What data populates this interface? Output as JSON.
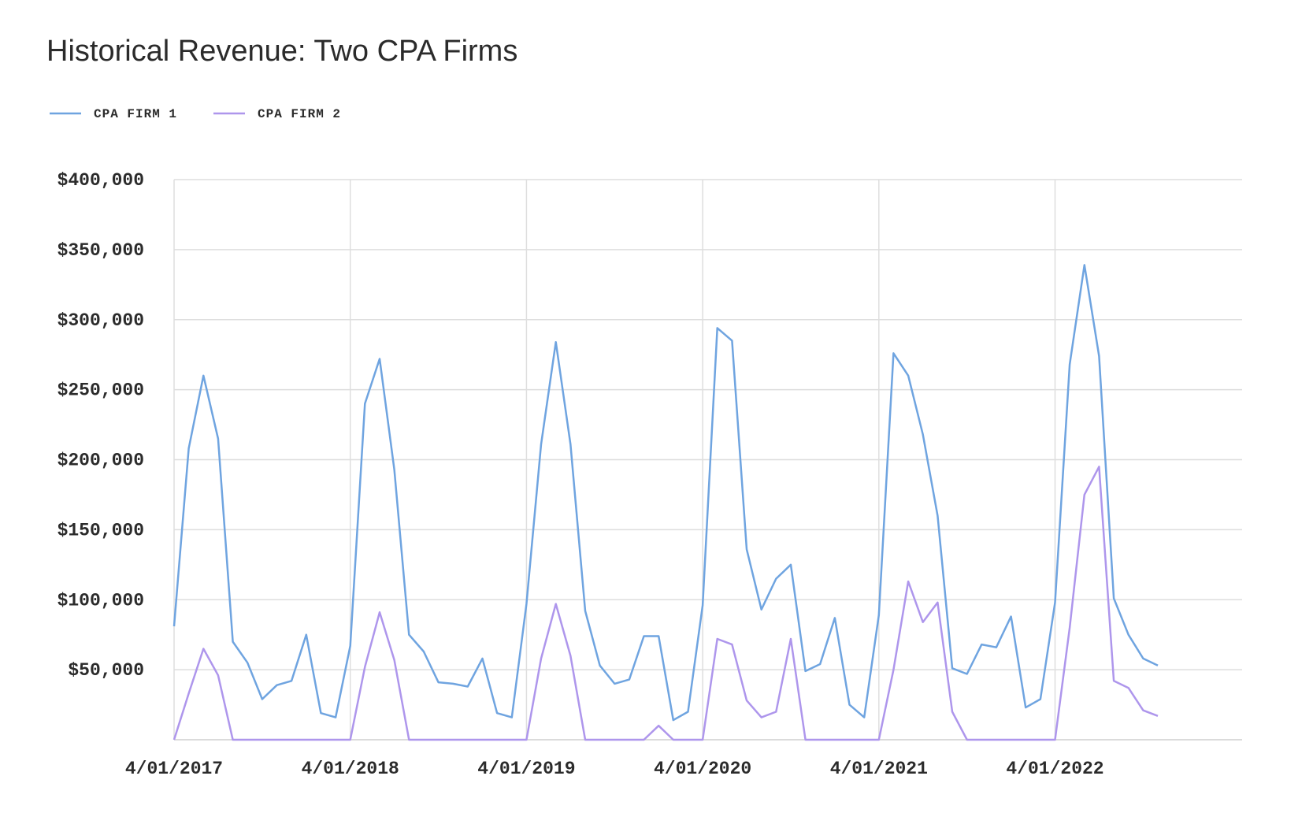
{
  "chart_data": {
    "type": "line",
    "title": "Historical Revenue: Two CPA Firms",
    "categories": [
      "4/01/2017",
      null,
      null,
      null,
      null,
      null,
      null,
      null,
      null,
      null,
      null,
      null,
      "4/01/2018",
      null,
      null,
      null,
      null,
      null,
      null,
      null,
      null,
      null,
      null,
      null,
      "4/01/2019",
      null,
      null,
      null,
      null,
      null,
      null,
      null,
      null,
      null,
      null,
      null,
      "4/01/2020",
      null,
      null,
      null,
      null,
      null,
      null,
      null,
      null,
      null,
      null,
      null,
      "4/01/2021",
      null,
      null,
      null,
      null,
      null,
      null,
      null,
      null,
      null,
      null,
      null,
      "4/01/2022",
      null,
      null,
      null,
      null,
      null,
      null,
      null
    ],
    "series": [
      {
        "name": "CPA FIRM 1",
        "color": "#6fa4e0",
        "values": [
          81000,
          208000,
          260000,
          215000,
          70000,
          55000,
          29000,
          39000,
          42000,
          75000,
          19000,
          16000,
          67000,
          240000,
          272000,
          193000,
          75000,
          63000,
          41000,
          40000,
          38000,
          58000,
          19000,
          16000,
          97000,
          211000,
          284000,
          211000,
          92000,
          53000,
          40000,
          43000,
          74000,
          74000,
          14000,
          20000,
          96000,
          294000,
          285000,
          136000,
          93000,
          115000,
          125000,
          49000,
          54000,
          87000,
          25000,
          16000,
          89000,
          276000,
          260000,
          218000,
          160000,
          51000,
          47000,
          68000,
          66000,
          88000,
          23000,
          29000,
          98000,
          268000,
          339000,
          274000,
          101000,
          75000,
          58000,
          53000
        ]
      },
      {
        "name": "CPA FIRM 2",
        "color": "#ae96ec",
        "values": [
          0,
          33000,
          65000,
          46000,
          0,
          0,
          0,
          0,
          0,
          0,
          0,
          0,
          0,
          52000,
          91000,
          57000,
          0,
          0,
          0,
          0,
          0,
          0,
          0,
          0,
          0,
          58000,
          97000,
          60000,
          0,
          0,
          0,
          0,
          0,
          10000,
          0,
          0,
          0,
          72000,
          68000,
          28000,
          16000,
          20000,
          72000,
          0,
          0,
          0,
          0,
          0,
          0,
          50000,
          113000,
          84000,
          98000,
          20000,
          0,
          0,
          0,
          0,
          0,
          0,
          0,
          80000,
          175000,
          195000,
          42000,
          37000,
          21000,
          17000
        ]
      }
    ],
    "ylim": [
      0,
      400000
    ],
    "yticks": [
      {
        "value": 50000,
        "label": "$50,000"
      },
      {
        "value": 100000,
        "label": "$100,000"
      },
      {
        "value": 150000,
        "label": "$150,000"
      },
      {
        "value": 200000,
        "label": "$200,000"
      },
      {
        "value": 250000,
        "label": "$250,000"
      },
      {
        "value": 300000,
        "label": "$300,000"
      },
      {
        "value": 350000,
        "label": "$350,000"
      },
      {
        "value": 400000,
        "label": "$400,000"
      }
    ],
    "grid": true,
    "legend": "top-left"
  }
}
